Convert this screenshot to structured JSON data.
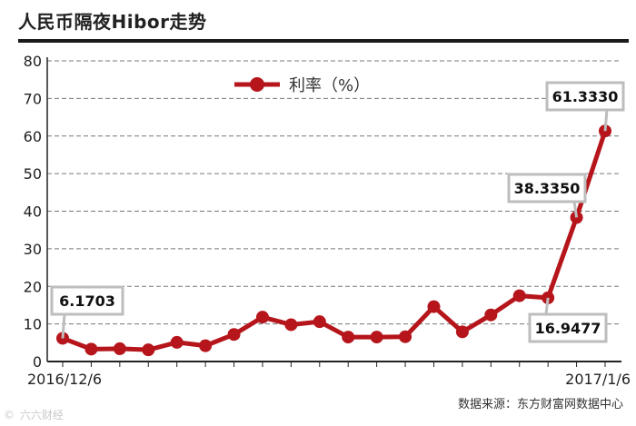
{
  "chart_data": {
    "type": "line",
    "title": "人民币隔夜Hibor走势",
    "xlabel": "",
    "ylabel": "",
    "ylim": [
      0,
      80
    ],
    "yticks": [
      0,
      10,
      20,
      30,
      40,
      50,
      60,
      70,
      80
    ],
    "x_tick_labels": [
      {
        "index": 0,
        "label": "2016/12/6"
      },
      {
        "index": 19,
        "label": "2017/1/6"
      }
    ],
    "grid": "horizontal dashed",
    "legend_position": "top-center",
    "series": [
      {
        "name": "利率（%）",
        "color": "#b5151b",
        "values": [
          6.1703,
          3.3,
          3.4,
          3.1,
          5.1,
          4.2,
          7.2,
          11.8,
          9.8,
          10.6,
          6.5,
          6.5,
          6.6,
          14.6,
          7.9,
          12.4,
          17.5,
          16.9477,
          38.335,
          61.333
        ]
      }
    ],
    "annotations": [
      {
        "index": 0,
        "text": "6.1703"
      },
      {
        "index": 17,
        "text": "16.9477"
      },
      {
        "index": 18,
        "text": "38.3350"
      },
      {
        "index": 19,
        "text": "61.3330"
      }
    ]
  },
  "source_note": "数据来源：东方财富网数据中心",
  "watermark": "六六财经"
}
